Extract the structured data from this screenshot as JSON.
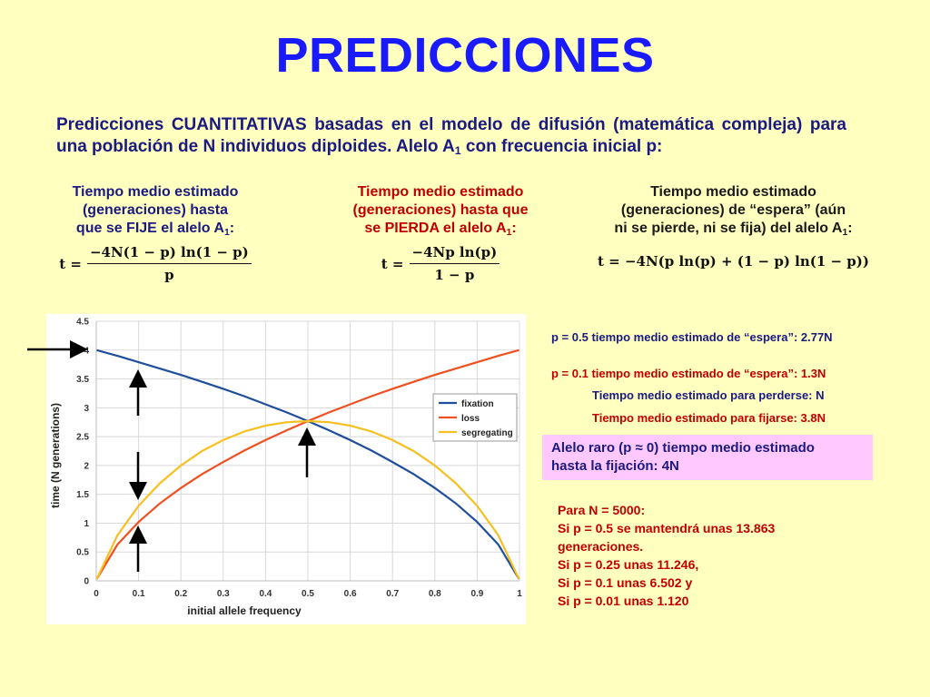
{
  "title": "PREDICCIONES",
  "intro": {
    "text": "Predicciones CUANTITATIVAS basadas en el modelo de difusión (matemática compleja) para una población de N individuos diploides. Alelo A",
    "sub": "1",
    "tail": " con frecuencia inicial p:"
  },
  "columns": [
    {
      "lines": [
        "Tiempo medio estimado",
        "(generaciones) hasta",
        "que se FIJE el alelo A"
      ],
      "sub": "1",
      "colon": ":",
      "formula": {
        "lhs": "t =",
        "num": "−4N(1 − p) ln(1 − p)",
        "den": "p"
      }
    },
    {
      "lines": [
        "Tiempo medio estimado",
        "(generaciones) hasta que",
        "se PIERDA el alelo A"
      ],
      "sub": "1",
      "colon": ":",
      "formula": {
        "lhs": "t =",
        "num": "−4Np ln(p)",
        "den": "1 − p"
      }
    },
    {
      "lines": [
        "Tiempo medio estimado",
        "(generaciones) de “espera” (aún",
        "ni se pierde, ni se fija) del alelo A"
      ],
      "sub": "1",
      "colon": ":",
      "formula": {
        "full": "t = −4N(p ln(p) + (1 − p) ln(1 − p))"
      }
    }
  ],
  "chart_data": {
    "type": "line",
    "xlabel": "initial allele frequency",
    "ylabel": "time (N generations)",
    "xlim": [
      0,
      1
    ],
    "ylim": [
      0,
      4.5
    ],
    "xticks": [
      "0",
      "0.1",
      "0.2",
      "0.3",
      "0.4",
      "0.5",
      "0.6",
      "0.7",
      "0.8",
      "0.9",
      "1"
    ],
    "yticks": [
      "0",
      "0.5",
      "1",
      "1.5",
      "2",
      "2.5",
      "3",
      "3.5",
      "4",
      "4.5"
    ],
    "grid": true,
    "legend_position": "right",
    "x": [
      0.001,
      0.05,
      0.1,
      0.15,
      0.2,
      0.25,
      0.3,
      0.35,
      0.4,
      0.45,
      0.5,
      0.55,
      0.6,
      0.65,
      0.7,
      0.75,
      0.8,
      0.85,
      0.9,
      0.95,
      0.999
    ],
    "series": [
      {
        "name": "fixation",
        "color": "#1f4e9c",
        "values": [
          4.0,
          3.9,
          3.79,
          3.68,
          3.57,
          3.45,
          3.33,
          3.2,
          3.06,
          2.92,
          2.77,
          2.61,
          2.44,
          2.26,
          2.06,
          1.85,
          1.61,
          1.34,
          1.02,
          0.63,
          0.03
        ]
      },
      {
        "name": "loss",
        "color": "#f05020",
        "values": [
          0.03,
          0.63,
          1.02,
          1.34,
          1.61,
          1.85,
          2.06,
          2.26,
          2.44,
          2.61,
          2.77,
          2.92,
          3.06,
          3.2,
          3.33,
          3.45,
          3.57,
          3.68,
          3.79,
          3.9,
          4.0
        ]
      },
      {
        "name": "segregating",
        "color": "#f5c020",
        "values": [
          0.03,
          0.79,
          1.3,
          1.69,
          2.0,
          2.25,
          2.44,
          2.59,
          2.69,
          2.75,
          2.77,
          2.75,
          2.69,
          2.59,
          2.44,
          2.25,
          2.0,
          1.69,
          1.3,
          0.79,
          0.03
        ]
      }
    ]
  },
  "notes": {
    "n1": "p = 0.5 tiempo medio estimado de “espera”: 2.77N",
    "n2": "p = 0.1 tiempo medio estimado de “espera”: 1.3N",
    "n3": "Tiempo medio estimado para perderse: N",
    "n4": "Tiempo medio estimado para fijarse: 3.8N"
  },
  "rare": {
    "line1": "Alelo raro (p ≈ 0) tiempo medio estimado",
    "line2": "hasta la fijación: 4N"
  },
  "examples": [
    "Para N = 5000:",
    "Si p = 0.5 se mantendrá unas 13.863",
    "generaciones.",
    "Si p = 0.25 unas 11.246,",
    "Si p = 0.1 unas 6.502 y",
    "Si p = 0.01 unas 1.120"
  ],
  "colors": {
    "background": "#ffffc0",
    "title": "#1a1aff",
    "navy": "#1a1a80",
    "red": "#c00000",
    "rare_box": "#ffc8ff"
  }
}
